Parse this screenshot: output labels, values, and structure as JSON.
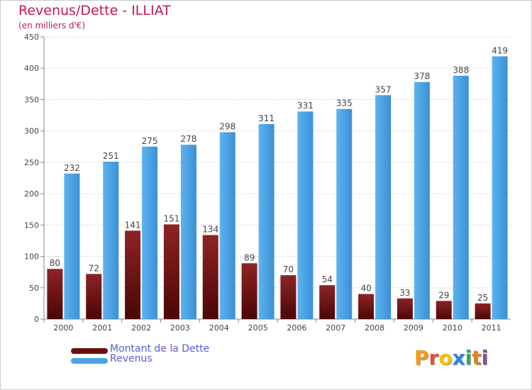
{
  "title": "Revenus/Dette - ILLIAT",
  "subtitle": "(en milliers d'€)",
  "logo_text": "Proxiti",
  "colors": {
    "title": "#c2185b",
    "dette": "#7a1515",
    "revenus": "#4aa3e6",
    "legend_text": "#5b5bd6"
  },
  "chart_data": {
    "type": "bar",
    "categories": [
      "2000",
      "2001",
      "2002",
      "2003",
      "2004",
      "2005",
      "2006",
      "2007",
      "2008",
      "2009",
      "2010",
      "2011"
    ],
    "series": [
      {
        "name": "Montant de la Dette",
        "values": [
          80,
          72,
          141,
          151,
          134,
          89,
          70,
          54,
          40,
          33,
          29,
          25
        ]
      },
      {
        "name": "Revenus",
        "values": [
          232,
          251,
          275,
          278,
          298,
          311,
          331,
          335,
          357,
          378,
          388,
          419
        ]
      }
    ],
    "ylim": [
      0,
      450
    ],
    "yticks": [
      0,
      50,
      100,
      150,
      200,
      250,
      300,
      350,
      400,
      450
    ],
    "grid": true,
    "legend_position": "bottom-left"
  },
  "legend": [
    {
      "label": "Montant de la Dette"
    },
    {
      "label": "Revenus"
    }
  ]
}
